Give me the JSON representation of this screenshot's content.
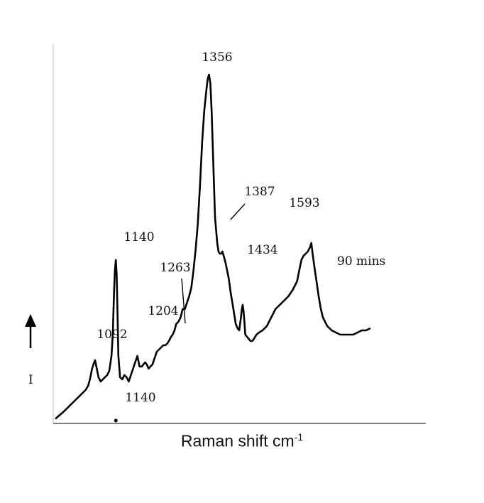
{
  "chart_data": {
    "type": "line",
    "xlabel": "Raman shift cm",
    "xlabel_superscript": "-1",
    "ylabel": "I",
    "y_axis_arrow": true,
    "series_label": "90 mins",
    "baseline_label": "1140",
    "grid": false,
    "peak_labels": [
      "1092",
      "1140",
      "1204",
      "1263",
      "1356",
      "1387",
      "1434",
      "1593"
    ],
    "x": [
      1000,
      1020,
      1040,
      1060,
      1070,
      1076,
      1080,
      1085,
      1090,
      1092,
      1095,
      1100,
      1105,
      1110,
      1115,
      1120,
      1125,
      1130,
      1133,
      1136,
      1138,
      1140,
      1142,
      1144,
      1146,
      1150,
      1155,
      1160,
      1165,
      1170,
      1175,
      1180,
      1185,
      1190,
      1195,
      1200,
      1204,
      1208,
      1212,
      1216,
      1220,
      1225,
      1230,
      1235,
      1240,
      1245,
      1250,
      1255,
      1260,
      1263,
      1268,
      1272,
      1276,
      1280,
      1285,
      1290,
      1295,
      1300,
      1305,
      1310,
      1315,
      1320,
      1325,
      1330,
      1335,
      1340,
      1345,
      1350,
      1353,
      1356,
      1359,
      1362,
      1366,
      1370,
      1375,
      1378,
      1381,
      1384,
      1387,
      1390,
      1394,
      1398,
      1402,
      1406,
      1410,
      1414,
      1418,
      1422,
      1426,
      1430,
      1432,
      1434,
      1436,
      1438,
      1440,
      1444,
      1448,
      1452,
      1456,
      1460,
      1466,
      1472,
      1480,
      1490,
      1500,
      1510,
      1520,
      1530,
      1540,
      1550,
      1560,
      1565,
      1570,
      1575,
      1580,
      1585,
      1590,
      1593,
      1596,
      1600,
      1605,
      1610,
      1615,
      1620,
      1625,
      1630,
      1640,
      1650,
      1660,
      1670,
      1680,
      1690,
      1700,
      1710,
      1720,
      1730
    ],
    "y": [
      0.005,
      0.04,
      0.08,
      0.12,
      0.14,
      0.16,
      0.19,
      0.24,
      0.27,
      0.28,
      0.25,
      0.2,
      0.18,
      0.19,
      0.2,
      0.21,
      0.23,
      0.3,
      0.4,
      0.6,
      0.7,
      0.75,
      0.68,
      0.5,
      0.3,
      0.2,
      0.19,
      0.21,
      0.2,
      0.18,
      0.21,
      0.24,
      0.27,
      0.3,
      0.25,
      0.25,
      0.26,
      0.27,
      0.26,
      0.24,
      0.25,
      0.26,
      0.29,
      0.32,
      0.33,
      0.34,
      0.35,
      0.35,
      0.36,
      0.37,
      0.39,
      0.4,
      0.42,
      0.45,
      0.46,
      0.48,
      0.52,
      0.52,
      0.55,
      0.58,
      0.62,
      0.7,
      0.8,
      0.92,
      1.1,
      1.3,
      1.45,
      1.55,
      1.6,
      1.62,
      1.58,
      1.45,
      1.2,
      0.95,
      0.83,
      0.79,
      0.78,
      0.78,
      0.79,
      0.77,
      0.74,
      0.7,
      0.66,
      0.6,
      0.55,
      0.5,
      0.45,
      0.43,
      0.42,
      0.48,
      0.52,
      0.54,
      0.51,
      0.46,
      0.4,
      0.39,
      0.38,
      0.37,
      0.37,
      0.38,
      0.4,
      0.41,
      0.42,
      0.44,
      0.48,
      0.52,
      0.54,
      0.56,
      0.58,
      0.61,
      0.65,
      0.7,
      0.75,
      0.77,
      0.78,
      0.79,
      0.81,
      0.83,
      0.78,
      0.72,
      0.65,
      0.58,
      0.52,
      0.48,
      0.46,
      0.44,
      0.42,
      0.41,
      0.4,
      0.4,
      0.4,
      0.4,
      0.41,
      0.42,
      0.42,
      0.43
    ]
  }
}
